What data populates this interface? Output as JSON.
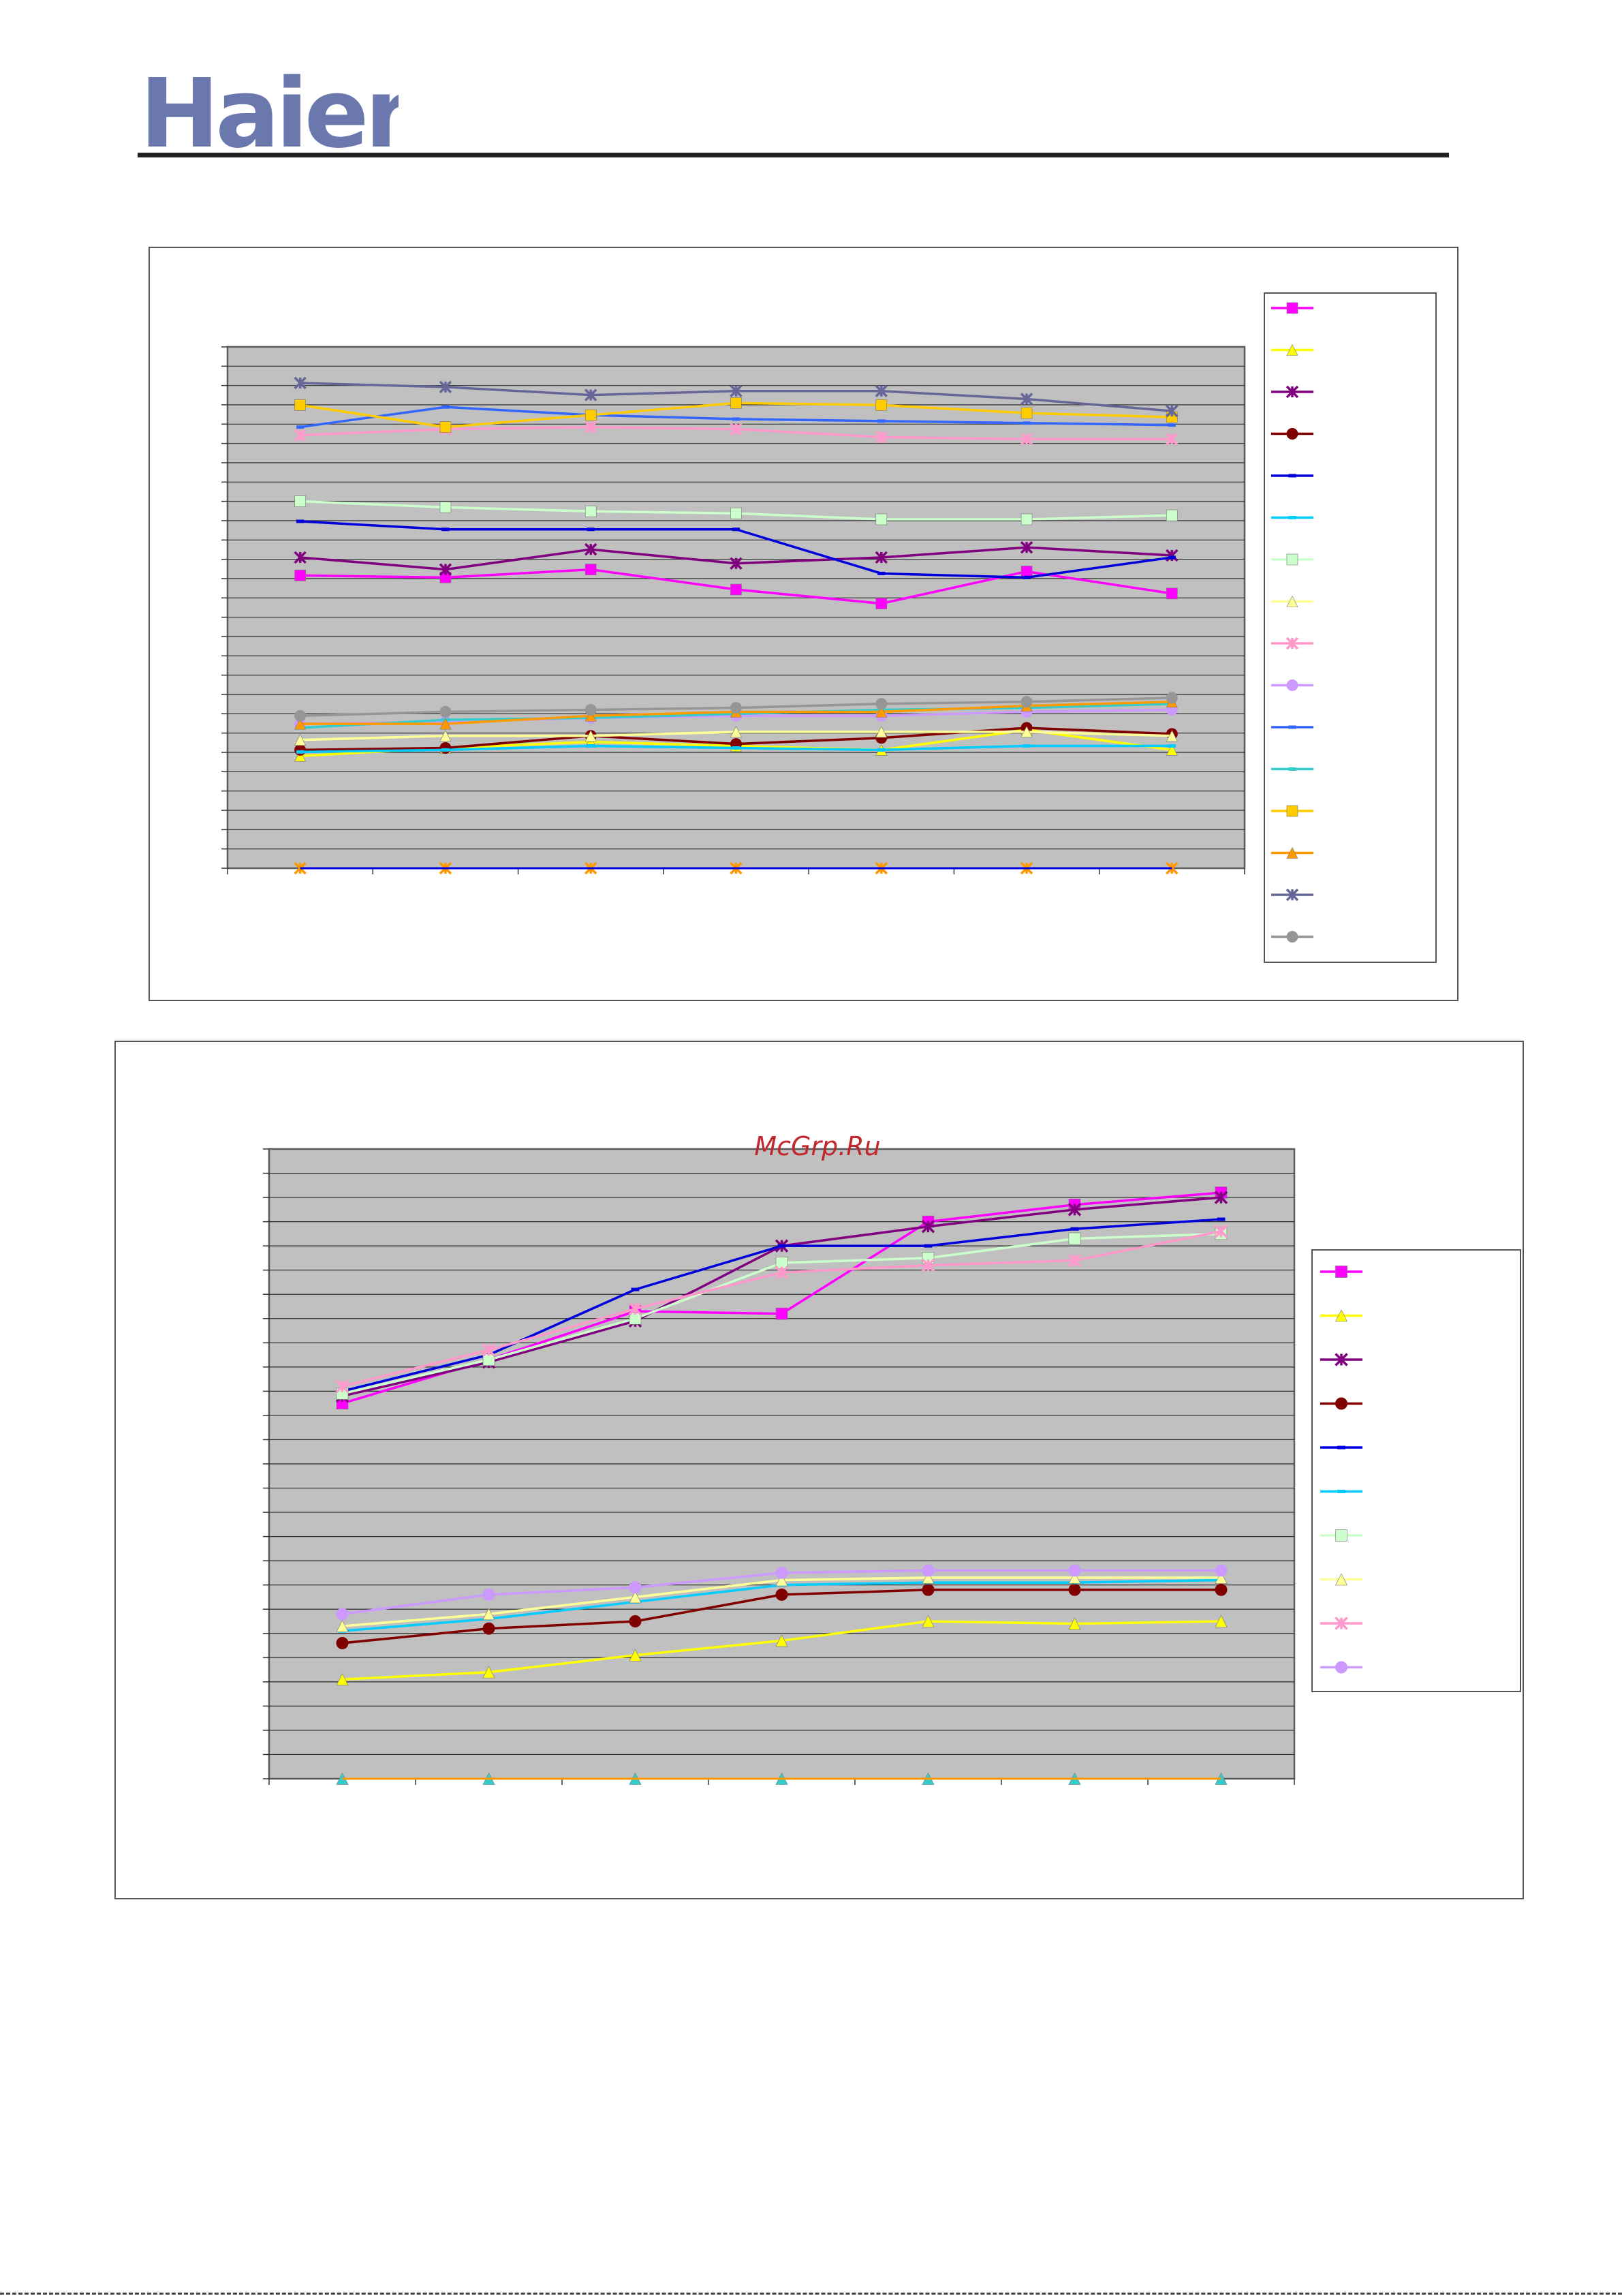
{
  "logo": {
    "text": "Haier",
    "color": "#6b78ad"
  },
  "watermark": "McGrp.Ru",
  "chart_data": [
    {
      "type": "line",
      "title": "",
      "xlabel": "",
      "ylabel": "",
      "x": [
        1,
        2,
        3,
        4,
        5,
        6,
        7
      ],
      "ylim": [
        0,
        26
      ],
      "grid": true,
      "legend_position": "right",
      "series": [
        {
          "color": "#ff00ff",
          "marker": "square",
          "values": [
            14.6,
            14.5,
            14.9,
            13.9,
            13.2,
            14.8,
            13.7
          ]
        },
        {
          "color": "#ffff00",
          "marker": "triangle",
          "values": [
            5.6,
            6.0,
            6.3,
            6.1,
            5.9,
            6.9,
            5.9
          ]
        },
        {
          "color": "#800080",
          "marker": "star",
          "values": [
            15.5,
            14.9,
            15.9,
            15.2,
            15.5,
            16.0,
            15.6
          ]
        },
        {
          "color": "#800000",
          "marker": "circle",
          "values": [
            5.9,
            6.0,
            6.6,
            6.2,
            6.5,
            7.0,
            6.7
          ]
        },
        {
          "color": "#0000dd",
          "marker": "dash",
          "values": [
            17.3,
            16.9,
            16.9,
            16.9,
            14.7,
            14.5,
            15.5
          ]
        },
        {
          "color": "#00ccff",
          "marker": "dash",
          "values": [
            5.8,
            5.9,
            6.1,
            6.0,
            5.9,
            6.1,
            6.1
          ]
        },
        {
          "color": "#ccffcc",
          "marker": "square",
          "values": [
            18.3,
            18.0,
            17.8,
            17.7,
            17.4,
            17.4,
            17.6
          ]
        },
        {
          "color": "#ffff99",
          "marker": "triangle",
          "values": [
            6.4,
            6.6,
            6.6,
            6.8,
            6.8,
            6.8,
            6.6
          ]
        },
        {
          "color": "#ff99cc",
          "marker": "star",
          "values": [
            21.6,
            21.9,
            22.0,
            21.9,
            21.5,
            21.4,
            21.4
          ]
        },
        {
          "color": "#cc99ff",
          "marker": "circle",
          "values": [
            7.2,
            7.3,
            7.5,
            7.6,
            7.6,
            7.8,
            7.9
          ]
        },
        {
          "color": "#3366ff",
          "marker": "dash",
          "values": [
            22.0,
            23.0,
            22.6,
            22.4,
            22.3,
            22.2,
            22.1
          ]
        },
        {
          "color": "#33cccc",
          "marker": "dash",
          "values": [
            7.0,
            7.4,
            7.5,
            7.7,
            7.9,
            8.0,
            8.2
          ]
        },
        {
          "color": "#ffcc00",
          "marker": "square",
          "values": [
            23.1,
            22.0,
            22.6,
            23.2,
            23.1,
            22.7,
            22.5
          ]
        },
        {
          "color": "#ff9900",
          "marker": "triangle",
          "values": [
            7.2,
            7.2,
            7.6,
            7.8,
            7.8,
            8.1,
            8.3
          ]
        },
        {
          "color": "#666699",
          "marker": "star",
          "values": [
            24.2,
            24.0,
            23.6,
            23.8,
            23.8,
            23.4,
            22.8
          ]
        },
        {
          "color": "#969696",
          "marker": "circle",
          "values": [
            7.6,
            7.8,
            7.9,
            8.0,
            8.2,
            8.3,
            8.5
          ]
        },
        {
          "color": "#ff9900",
          "marker": "star",
          "baseline": true,
          "values": [
            0,
            0,
            0,
            0,
            0,
            0,
            0
          ]
        },
        {
          "color": "#0000dd",
          "marker": "none",
          "baseline": true,
          "values": [
            0,
            0,
            0,
            0,
            0,
            0,
            0
          ]
        }
      ]
    },
    {
      "type": "line",
      "title": "",
      "xlabel": "",
      "ylabel": "",
      "x": [
        1,
        2,
        3,
        4,
        5,
        6,
        7
      ],
      "ylim": [
        0,
        26
      ],
      "grid": true,
      "legend_position": "right",
      "series": [
        {
          "color": "#ff00ff",
          "marker": "square",
          "values": [
            15.5,
            17.3,
            19.3,
            19.2,
            23.0,
            23.7,
            24.2
          ]
        },
        {
          "color": "#ffff00",
          "marker": "triangle",
          "values": [
            4.1,
            4.4,
            5.1,
            5.7,
            6.5,
            6.4,
            6.5
          ]
        },
        {
          "color": "#800080",
          "marker": "star",
          "values": [
            15.8,
            17.2,
            18.9,
            22.0,
            22.8,
            23.5,
            24.0
          ]
        },
        {
          "color": "#800000",
          "marker": "circle",
          "values": [
            5.6,
            6.2,
            6.5,
            7.6,
            7.8,
            7.8,
            7.8
          ]
        },
        {
          "color": "#0000dd",
          "marker": "dash",
          "values": [
            16.0,
            17.5,
            20.2,
            22.0,
            22.0,
            22.7,
            23.1
          ]
        },
        {
          "color": "#00ccff",
          "marker": "dash",
          "values": [
            6.1,
            6.6,
            7.3,
            8.0,
            8.1,
            8.1,
            8.2
          ]
        },
        {
          "color": "#ccffcc",
          "marker": "square",
          "values": [
            15.9,
            17.3,
            19.0,
            21.3,
            21.5,
            22.3,
            22.5
          ]
        },
        {
          "color": "#ffff99",
          "marker": "triangle",
          "values": [
            6.3,
            6.8,
            7.5,
            8.2,
            8.3,
            8.3,
            8.3
          ]
        },
        {
          "color": "#ff99cc",
          "marker": "star",
          "values": [
            16.2,
            17.7,
            19.4,
            20.9,
            21.2,
            21.4,
            22.6
          ]
        },
        {
          "color": "#cc99ff",
          "marker": "circle",
          "values": [
            6.8,
            7.6,
            7.9,
            8.5,
            8.6,
            8.6,
            8.6
          ]
        },
        {
          "color": "#33cccc",
          "marker": "triangle",
          "baseline": true,
          "values": [
            0,
            0,
            0,
            0,
            0,
            0,
            0
          ]
        },
        {
          "color": "#ff9900",
          "marker": "none",
          "baseline": true,
          "values": [
            0,
            0,
            0,
            0,
            0,
            0,
            0
          ]
        }
      ]
    }
  ]
}
